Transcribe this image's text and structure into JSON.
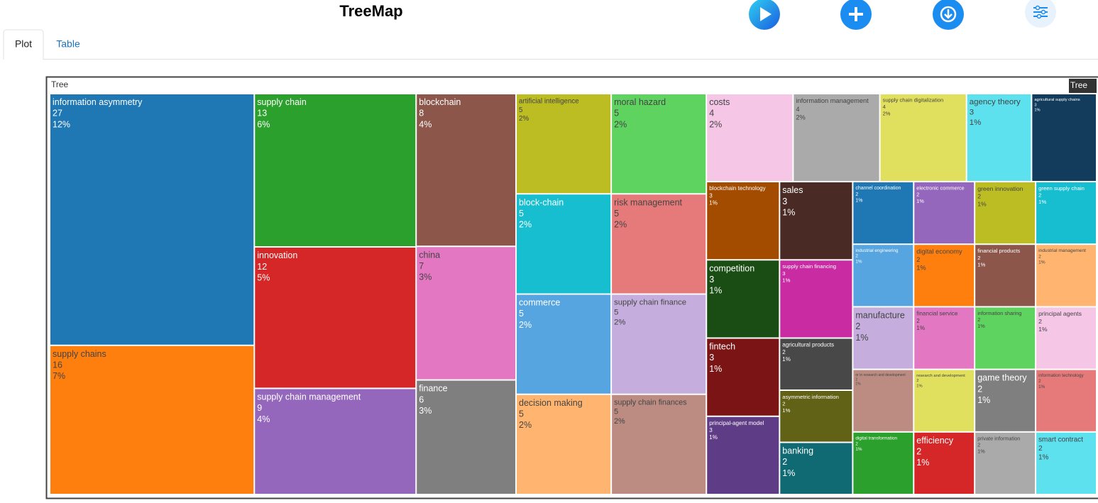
{
  "page": {
    "title": "TreeMap",
    "tabs": [
      "Plot",
      "Table"
    ]
  },
  "chart_data": {
    "type": "treemap",
    "root": "Tree",
    "labels": [
      "information asymmetry",
      "supply chains",
      "supply chain",
      "innovation",
      "supply chain management",
      "blockchain",
      "china",
      "finance",
      "artificial intelligence",
      "block-chain",
      "commerce",
      "decision making",
      "moral hazard",
      "risk management",
      "supply chain finance",
      "supply chain finances",
      "costs",
      "information management",
      "supply chain digitalization",
      "agency theory",
      "agricultural supply chains",
      "blockchain technology",
      "competition",
      "fintech",
      "principal-agent model",
      "sales",
      "supply chain financing",
      "agricultural products",
      "asymmetric information",
      "banking",
      "channel coordination",
      "electronic commerce",
      "green innovation",
      "green supply chain",
      "industrial engineering",
      "digital economy",
      "financial products",
      "industrial management",
      "manufacture",
      "or in research and development",
      "digital transformation",
      "financial service",
      "information sharing",
      "principal agents",
      "research and development",
      "efficiency",
      "game theory",
      "information technology",
      "private information",
      "smart contract"
    ],
    "values": [
      27,
      16,
      13,
      12,
      9,
      8,
      7,
      6,
      5,
      5,
      5,
      5,
      5,
      5,
      5,
      5,
      4,
      4,
      4,
      3,
      3,
      3,
      3,
      3,
      3,
      3,
      3,
      2,
      2,
      2,
      2,
      2,
      2,
      2,
      2,
      2,
      2,
      2,
      2,
      2,
      2,
      2,
      2,
      2,
      2,
      2,
      2,
      2,
      2,
      2
    ],
    "percent_labels": [
      "12%",
      "7%",
      "6%",
      "5%",
      "4%",
      "4%",
      "3%",
      "3%",
      "2%",
      "2%",
      "2%",
      "2%",
      "2%",
      "2%",
      "2%",
      "2%",
      "2%",
      "2%",
      "2%",
      "1%",
      "1%",
      "1%",
      "1%",
      "1%",
      "1%",
      "1%",
      "1%",
      "1%",
      "1%",
      "1%",
      "1%",
      "1%",
      "1%",
      "1%",
      "1%",
      "1%",
      "1%",
      "1%",
      "1%",
      "1%",
      "1%",
      "1%",
      "1%",
      "1%",
      "1%",
      "1%",
      "1%",
      "1%",
      "1%",
      "1%"
    ],
    "colors": [
      "#1f77b4",
      "#ff7f0e",
      "#2ca02c",
      "#d62728",
      "#9467bd",
      "#8c564b",
      "#e377c2",
      "#7f7f7f",
      "#bcbd22",
      "#17becf",
      "#57a5e0",
      "#ffb570",
      "#5fd35f",
      "#e67a7a",
      "#c5aedd",
      "#bc8c82",
      "#f5c6e6",
      "#aaaaaa",
      "#e1e05e",
      "#5de1ee",
      "#133c5c",
      "#a34c00",
      "#1a4d13",
      "#7b1515",
      "#5f3c86",
      "#4a2a24",
      "#c92ba3",
      "#484848",
      "#626216",
      "#0f6a73",
      "#1f77b4",
      "#9467bd",
      "#bcbd22",
      "#17becf",
      "#57a5e0",
      "#ff7f0e",
      "#8c564b",
      "#ffb570",
      "#c5aedd",
      "#bc8c82",
      "#2ca02c",
      "#e377c2",
      "#5fd35f",
      "#f5c6e6",
      "#e1e05e",
      "#d62728",
      "#7f7f7f",
      "#e67a7a",
      "#aaaaaa",
      "#5de1ee"
    ]
  }
}
